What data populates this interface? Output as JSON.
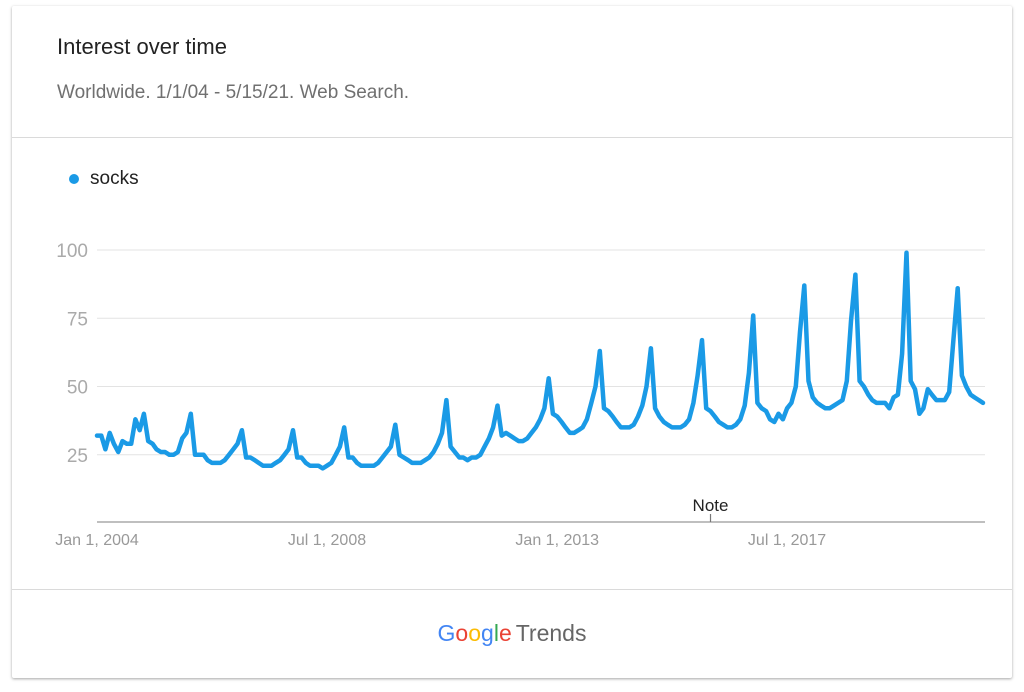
{
  "header": {
    "title": "Interest over time",
    "subtitle": "Worldwide. 1/1/04 - 5/15/21. Web Search."
  },
  "legend": {
    "label": "socks"
  },
  "footer": {
    "logo_letters": [
      {
        "ch": "G",
        "color": "#4285F4"
      },
      {
        "ch": "o",
        "color": "#EA4335"
      },
      {
        "ch": "o",
        "color": "#FBBC05"
      },
      {
        "ch": "g",
        "color": "#4285F4"
      },
      {
        "ch": "l",
        "color": "#34A853"
      },
      {
        "ch": "e",
        "color": "#EA4335"
      }
    ],
    "trends_label": "Trends"
  },
  "chart_data": {
    "type": "line",
    "title": "Interest over time",
    "subtitle": "Worldwide. 1/1/04 - 5/15/21. Web Search.",
    "xlabel": "",
    "ylabel": "",
    "ylim": [
      0,
      100
    ],
    "yticks": [
      25,
      50,
      75,
      100
    ],
    "x_range": [
      "2004-01-01",
      "2021-05-15"
    ],
    "x_ticks": [
      {
        "date": "2004-01-01",
        "label": "Jan 1, 2004"
      },
      {
        "date": "2008-07-01",
        "label": "Jul 1, 2008"
      },
      {
        "date": "2013-01-01",
        "label": "Jan 1, 2013"
      },
      {
        "date": "2017-07-01",
        "label": "Jul 1, 2017"
      }
    ],
    "annotations": [
      {
        "date": "2016-01-01",
        "label": "Note"
      }
    ],
    "grid": true,
    "legend_position": "top-left",
    "series": [
      {
        "name": "socks",
        "color": "#1a9ae6",
        "points": [
          [
            "2004-01-01",
            32
          ],
          [
            "2004-02-01",
            32
          ],
          [
            "2004-03-01",
            27
          ],
          [
            "2004-04-01",
            33
          ],
          [
            "2004-05-01",
            29
          ],
          [
            "2004-06-01",
            26
          ],
          [
            "2004-07-01",
            30
          ],
          [
            "2004-08-01",
            29
          ],
          [
            "2004-09-01",
            29
          ],
          [
            "2004-10-01",
            38
          ],
          [
            "2004-11-01",
            34
          ],
          [
            "2004-12-01",
            40
          ],
          [
            "2005-01-01",
            30
          ],
          [
            "2005-02-01",
            29
          ],
          [
            "2005-03-01",
            27
          ],
          [
            "2005-04-01",
            26
          ],
          [
            "2005-05-01",
            26
          ],
          [
            "2005-06-01",
            25
          ],
          [
            "2005-07-01",
            25
          ],
          [
            "2005-08-01",
            26
          ],
          [
            "2005-09-01",
            31
          ],
          [
            "2005-10-01",
            33
          ],
          [
            "2005-11-01",
            40
          ],
          [
            "2005-12-01",
            25
          ],
          [
            "2006-01-01",
            25
          ],
          [
            "2006-02-01",
            25
          ],
          [
            "2006-03-01",
            23
          ],
          [
            "2006-04-01",
            22
          ],
          [
            "2006-05-01",
            22
          ],
          [
            "2006-06-01",
            22
          ],
          [
            "2006-07-01",
            23
          ],
          [
            "2006-08-01",
            25
          ],
          [
            "2006-09-01",
            27
          ],
          [
            "2006-10-01",
            29
          ],
          [
            "2006-11-01",
            34
          ],
          [
            "2006-12-01",
            24
          ],
          [
            "2007-01-01",
            24
          ],
          [
            "2007-02-01",
            23
          ],
          [
            "2007-03-01",
            22
          ],
          [
            "2007-04-01",
            21
          ],
          [
            "2007-05-01",
            21
          ],
          [
            "2007-06-01",
            21
          ],
          [
            "2007-07-01",
            22
          ],
          [
            "2007-08-01",
            23
          ],
          [
            "2007-09-01",
            25
          ],
          [
            "2007-10-01",
            27
          ],
          [
            "2007-11-01",
            34
          ],
          [
            "2007-12-01",
            24
          ],
          [
            "2008-01-01",
            24
          ],
          [
            "2008-02-01",
            22
          ],
          [
            "2008-03-01",
            21
          ],
          [
            "2008-04-01",
            21
          ],
          [
            "2008-05-01",
            21
          ],
          [
            "2008-06-01",
            20
          ],
          [
            "2008-07-01",
            21
          ],
          [
            "2008-08-01",
            22
          ],
          [
            "2008-09-01",
            25
          ],
          [
            "2008-10-01",
            28
          ],
          [
            "2008-11-01",
            35
          ],
          [
            "2008-12-01",
            24
          ],
          [
            "2009-01-01",
            24
          ],
          [
            "2009-02-01",
            22
          ],
          [
            "2009-03-01",
            21
          ],
          [
            "2009-04-01",
            21
          ],
          [
            "2009-05-01",
            21
          ],
          [
            "2009-06-01",
            21
          ],
          [
            "2009-07-01",
            22
          ],
          [
            "2009-08-01",
            24
          ],
          [
            "2009-09-01",
            26
          ],
          [
            "2009-10-01",
            28
          ],
          [
            "2009-11-01",
            36
          ],
          [
            "2009-12-01",
            25
          ],
          [
            "2010-01-01",
            24
          ],
          [
            "2010-02-01",
            23
          ],
          [
            "2010-03-01",
            22
          ],
          [
            "2010-04-01",
            22
          ],
          [
            "2010-05-01",
            22
          ],
          [
            "2010-06-01",
            23
          ],
          [
            "2010-07-01",
            24
          ],
          [
            "2010-08-01",
            26
          ],
          [
            "2010-09-01",
            29
          ],
          [
            "2010-10-01",
            33
          ],
          [
            "2010-11-01",
            45
          ],
          [
            "2010-12-01",
            28
          ],
          [
            "2011-01-01",
            26
          ],
          [
            "2011-02-01",
            24
          ],
          [
            "2011-03-01",
            24
          ],
          [
            "2011-04-01",
            23
          ],
          [
            "2011-05-01",
            24
          ],
          [
            "2011-06-01",
            24
          ],
          [
            "2011-07-01",
            25
          ],
          [
            "2011-08-01",
            28
          ],
          [
            "2011-09-01",
            31
          ],
          [
            "2011-10-01",
            35
          ],
          [
            "2011-11-01",
            43
          ],
          [
            "2011-12-01",
            32
          ],
          [
            "2012-01-01",
            33
          ],
          [
            "2012-02-01",
            32
          ],
          [
            "2012-03-01",
            31
          ],
          [
            "2012-04-01",
            30
          ],
          [
            "2012-05-01",
            30
          ],
          [
            "2012-06-01",
            31
          ],
          [
            "2012-07-01",
            33
          ],
          [
            "2012-08-01",
            35
          ],
          [
            "2012-09-01",
            38
          ],
          [
            "2012-10-01",
            42
          ],
          [
            "2012-11-01",
            53
          ],
          [
            "2012-12-01",
            40
          ],
          [
            "2013-01-01",
            39
          ],
          [
            "2013-02-01",
            37
          ],
          [
            "2013-03-01",
            35
          ],
          [
            "2013-04-01",
            33
          ],
          [
            "2013-05-01",
            33
          ],
          [
            "2013-06-01",
            34
          ],
          [
            "2013-07-01",
            35
          ],
          [
            "2013-08-01",
            38
          ],
          [
            "2013-09-01",
            44
          ],
          [
            "2013-10-01",
            50
          ],
          [
            "2013-11-01",
            63
          ],
          [
            "2013-12-01",
            42
          ],
          [
            "2014-01-01",
            41
          ],
          [
            "2014-02-01",
            39
          ],
          [
            "2014-03-01",
            37
          ],
          [
            "2014-04-01",
            35
          ],
          [
            "2014-05-01",
            35
          ],
          [
            "2014-06-01",
            35
          ],
          [
            "2014-07-01",
            36
          ],
          [
            "2014-08-01",
            39
          ],
          [
            "2014-09-01",
            43
          ],
          [
            "2014-10-01",
            50
          ],
          [
            "2014-11-01",
            64
          ],
          [
            "2014-12-01",
            42
          ],
          [
            "2015-01-01",
            39
          ],
          [
            "2015-02-01",
            37
          ],
          [
            "2015-03-01",
            36
          ],
          [
            "2015-04-01",
            35
          ],
          [
            "2015-05-01",
            35
          ],
          [
            "2015-06-01",
            35
          ],
          [
            "2015-07-01",
            36
          ],
          [
            "2015-08-01",
            38
          ],
          [
            "2015-09-01",
            44
          ],
          [
            "2015-10-01",
            54
          ],
          [
            "2015-11-01",
            67
          ],
          [
            "2015-12-01",
            42
          ],
          [
            "2016-01-01",
            41
          ],
          [
            "2016-02-01",
            39
          ],
          [
            "2016-03-01",
            37
          ],
          [
            "2016-04-01",
            36
          ],
          [
            "2016-05-01",
            35
          ],
          [
            "2016-06-01",
            35
          ],
          [
            "2016-07-01",
            36
          ],
          [
            "2016-08-01",
            38
          ],
          [
            "2016-09-01",
            43
          ],
          [
            "2016-10-01",
            55
          ],
          [
            "2016-11-01",
            76
          ],
          [
            "2016-12-01",
            44
          ],
          [
            "2017-01-01",
            42
          ],
          [
            "2017-02-01",
            41
          ],
          [
            "2017-03-01",
            38
          ],
          [
            "2017-04-01",
            37
          ],
          [
            "2017-05-01",
            40
          ],
          [
            "2017-06-01",
            38
          ],
          [
            "2017-07-01",
            42
          ],
          [
            "2017-08-01",
            44
          ],
          [
            "2017-09-01",
            50
          ],
          [
            "2017-10-01",
            70
          ],
          [
            "2017-11-01",
            87
          ],
          [
            "2017-12-01",
            52
          ],
          [
            "2018-01-01",
            46
          ],
          [
            "2018-02-01",
            44
          ],
          [
            "2018-03-01",
            43
          ],
          [
            "2018-04-01",
            42
          ],
          [
            "2018-05-01",
            42
          ],
          [
            "2018-06-01",
            43
          ],
          [
            "2018-07-01",
            44
          ],
          [
            "2018-08-01",
            45
          ],
          [
            "2018-09-01",
            52
          ],
          [
            "2018-10-01",
            74
          ],
          [
            "2018-11-01",
            91
          ],
          [
            "2018-12-01",
            52
          ],
          [
            "2019-01-01",
            50
          ],
          [
            "2019-02-01",
            47
          ],
          [
            "2019-03-01",
            45
          ],
          [
            "2019-04-01",
            44
          ],
          [
            "2019-05-01",
            44
          ],
          [
            "2019-06-01",
            44
          ],
          [
            "2019-07-01",
            42
          ],
          [
            "2019-08-01",
            46
          ],
          [
            "2019-09-01",
            47
          ],
          [
            "2019-10-01",
            62
          ],
          [
            "2019-11-01",
            99
          ],
          [
            "2019-12-01",
            52
          ],
          [
            "2020-01-01",
            49
          ],
          [
            "2020-02-01",
            40
          ],
          [
            "2020-03-01",
            42
          ],
          [
            "2020-04-01",
            49
          ],
          [
            "2020-05-01",
            47
          ],
          [
            "2020-06-01",
            45
          ],
          [
            "2020-07-01",
            45
          ],
          [
            "2020-08-01",
            45
          ],
          [
            "2020-09-01",
            48
          ],
          [
            "2020-10-01",
            67
          ],
          [
            "2020-11-01",
            86
          ],
          [
            "2020-12-01",
            54
          ],
          [
            "2021-01-01",
            50
          ],
          [
            "2021-02-01",
            47
          ],
          [
            "2021-03-01",
            46
          ],
          [
            "2021-04-01",
            45
          ],
          [
            "2021-05-01",
            44
          ]
        ]
      }
    ]
  }
}
